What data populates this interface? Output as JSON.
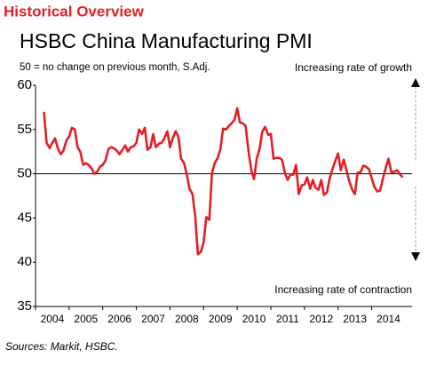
{
  "header": {
    "title": "Historical Overview"
  },
  "chart_data": {
    "type": "line",
    "title": "HSBC China Manufacturing PMI",
    "subtitle": "50 = no change on previous month, S.Adj.",
    "annotations": [
      "Increasing rate of growth",
      "Increasing rate of contraction"
    ],
    "source": "Sources: Markit, HSBC.",
    "xlim": [
      2004,
      2015.2
    ],
    "xticks": [
      2004,
      2005,
      2006,
      2007,
      2008,
      2009,
      2010,
      2011,
      2012,
      2013,
      2014
    ],
    "ylim": [
      35,
      60
    ],
    "yticks": [
      35,
      40,
      45,
      50,
      55,
      60
    ],
    "reference_line": 50,
    "x": [
      2004.25,
      2004.33,
      2004.42,
      2004.5,
      2004.58,
      2004.67,
      2004.75,
      2004.83,
      2004.92,
      2005,
      2005.08,
      2005.17,
      2005.25,
      2005.33,
      2005.42,
      2005.5,
      2005.58,
      2005.67,
      2005.75,
      2005.83,
      2005.92,
      2006,
      2006.08,
      2006.17,
      2006.25,
      2006.33,
      2006.42,
      2006.5,
      2006.58,
      2006.67,
      2006.75,
      2006.83,
      2006.92,
      2007,
      2007.08,
      2007.17,
      2007.25,
      2007.33,
      2007.42,
      2007.5,
      2007.58,
      2007.67,
      2007.75,
      2007.83,
      2007.92,
      2008,
      2008.08,
      2008.17,
      2008.25,
      2008.33,
      2008.42,
      2008.5,
      2008.58,
      2008.67,
      2008.75,
      2008.83,
      2008.92,
      2009,
      2009.08,
      2009.17,
      2009.25,
      2009.33,
      2009.42,
      2009.5,
      2009.58,
      2009.67,
      2009.75,
      2009.83,
      2009.92,
      2010,
      2010.08,
      2010.17,
      2010.25,
      2010.33,
      2010.42,
      2010.5,
      2010.58,
      2010.67,
      2010.75,
      2010.83,
      2010.92,
      2011,
      2011.08,
      2011.17,
      2011.25,
      2011.33,
      2011.42,
      2011.5,
      2011.58,
      2011.67,
      2011.75,
      2011.83,
      2011.92,
      2012,
      2012.08,
      2012.17,
      2012.25,
      2012.33,
      2012.42,
      2012.5,
      2012.58,
      2012.67,
      2012.75,
      2012.83,
      2012.92,
      2013,
      2013.08,
      2013.17,
      2013.25,
      2013.33,
      2013.42,
      2013.5,
      2013.58,
      2013.67,
      2013.75,
      2013.83,
      2013.92,
      2014,
      2014.08,
      2014.17,
      2014.25,
      2014.33,
      2014.42,
      2014.5,
      2014.58,
      2014.67,
      2014.75,
      2014.83,
      2014.92
    ],
    "series": [
      {
        "color": "#e31e24",
        "values": [
          57.0,
          53.5,
          52.9,
          53.5,
          54.0,
          52.8,
          52.2,
          52.6,
          53.8,
          54.2,
          55.2,
          55.0,
          53.0,
          52.5,
          51.0,
          51.2,
          51.0,
          50.6,
          50.0,
          50.2,
          50.8,
          51.0,
          51.5,
          52.8,
          53.0,
          52.9,
          52.6,
          52.2,
          52.7,
          53.2,
          52.5,
          53.0,
          53.1,
          53.5,
          55.0,
          54.5,
          55.2,
          52.7,
          53.0,
          54.5,
          53.0,
          53.4,
          53.5,
          54.0,
          54.8,
          53.0,
          54.0,
          54.8,
          54.2,
          51.7,
          51.2,
          49.9,
          48.3,
          47.7,
          45.2,
          40.9,
          41.2,
          42.2,
          45.1,
          44.8,
          50.1,
          51.2,
          51.8,
          52.8,
          55.1,
          55.0,
          55.4,
          55.7,
          56.1,
          57.4,
          55.8,
          55.7,
          55.4,
          52.7,
          50.4,
          49.4,
          51.7,
          52.9,
          54.8,
          55.3,
          54.4,
          54.5,
          51.7,
          51.8,
          51.8,
          51.6,
          50.1,
          49.3,
          49.9,
          49.9,
          51.0,
          47.7,
          48.7,
          48.8,
          49.6,
          48.3,
          49.3,
          48.4,
          48.2,
          49.3,
          47.6,
          47.9,
          49.5,
          50.5,
          51.5,
          52.3,
          50.4,
          51.6,
          50.4,
          49.2,
          48.2,
          47.7,
          50.1,
          50.2,
          50.9,
          50.8,
          50.5,
          49.5,
          48.5,
          48.0,
          48.1,
          49.4,
          50.7,
          51.7,
          50.2,
          50.2,
          50.4,
          50.0,
          49.6
        ]
      }
    ]
  }
}
